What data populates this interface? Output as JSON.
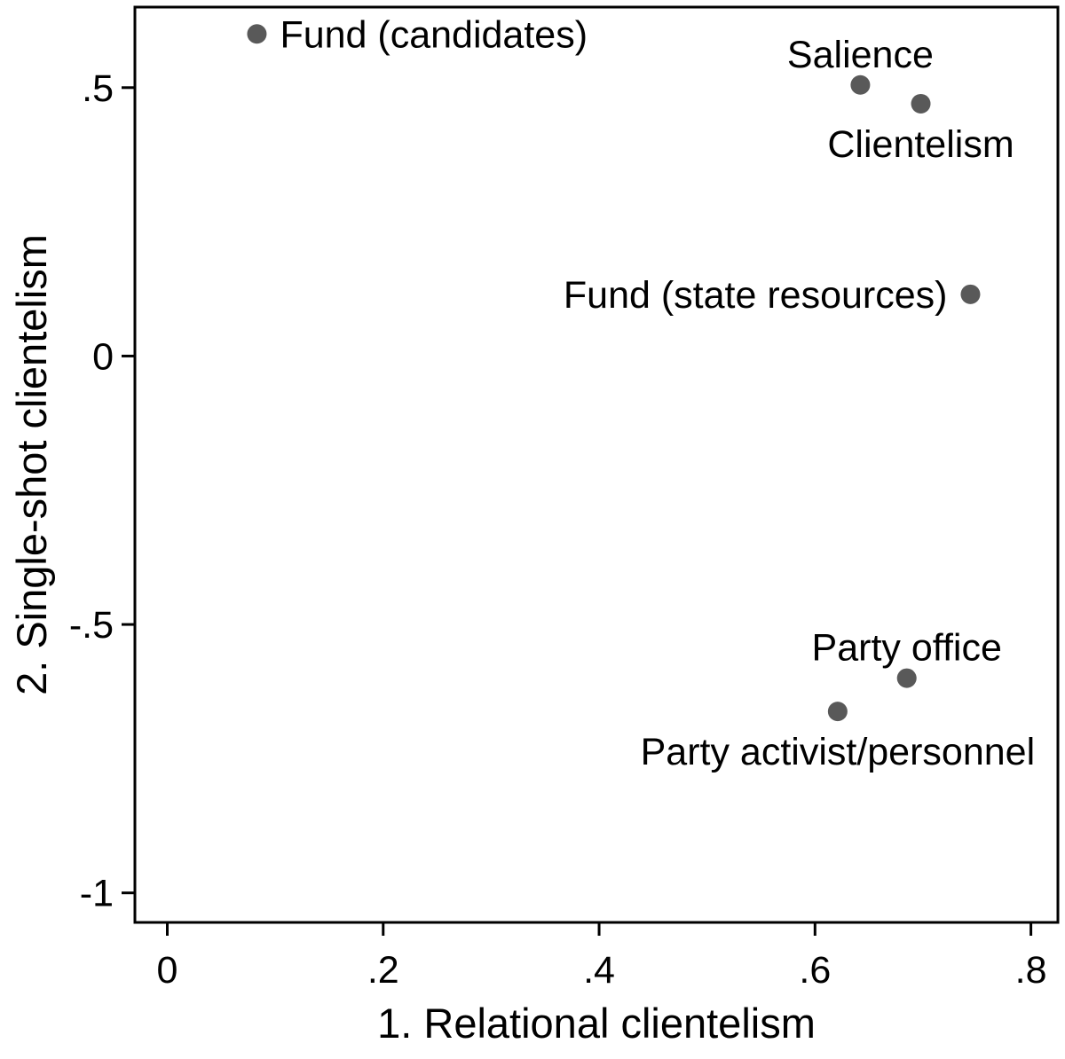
{
  "page": {
    "background": "#ffffff"
  },
  "chart_data": {
    "type": "scatter",
    "title": "",
    "xlabel": "1. Relational clientelism",
    "ylabel": "2. Single-shot clientelism",
    "xlim": [
      -0.03,
      0.825
    ],
    "ylim": [
      -1.055,
      0.65
    ],
    "grid": false,
    "legend": "none",
    "marker_color": "#595959",
    "axis_color": "#000000",
    "text_color": "#000000",
    "x_ticks": [
      {
        "value": 0.0,
        "label": "0"
      },
      {
        "value": 0.2,
        "label": ".2"
      },
      {
        "value": 0.4,
        "label": ".4"
      },
      {
        "value": 0.6,
        "label": ".6"
      },
      {
        "value": 0.8,
        "label": ".8"
      }
    ],
    "y_ticks": [
      {
        "value": 0.5,
        "label": ".5"
      },
      {
        "value": 0.0,
        "label": "0"
      },
      {
        "value": -0.5,
        "label": "-.5"
      },
      {
        "value": -1.0,
        "label": "-1"
      }
    ],
    "points": [
      {
        "label": "Fund (candidates)",
        "x": 0.083,
        "y": 0.6,
        "label_position": "right"
      },
      {
        "label": "Salience",
        "x": 0.642,
        "y": 0.505,
        "label_position": "above"
      },
      {
        "label": "Clientelism",
        "x": 0.698,
        "y": 0.47,
        "label_position": "below"
      },
      {
        "label": "Fund (state resources)",
        "x": 0.744,
        "y": 0.115,
        "label_position": "left"
      },
      {
        "label": "Party office",
        "x": 0.685,
        "y": -0.6,
        "label_position": "above"
      },
      {
        "label": "Party activist/personnel",
        "x": 0.621,
        "y": -0.662,
        "label_position": "below"
      }
    ]
  }
}
